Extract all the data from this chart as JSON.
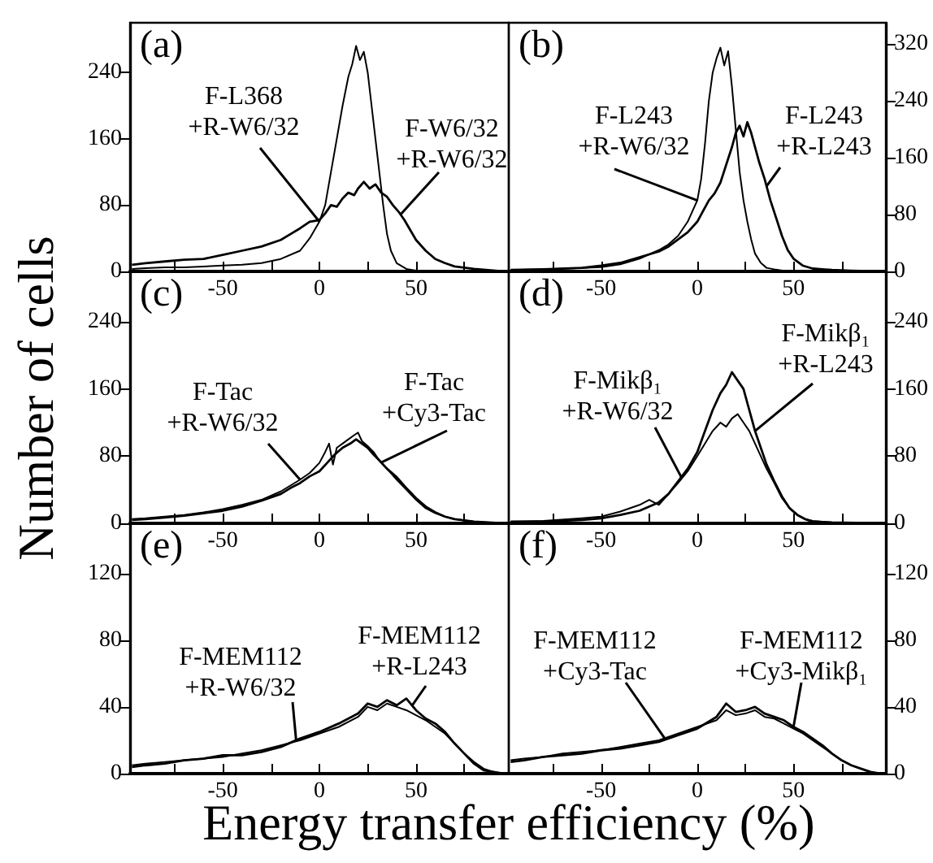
{
  "chart_data": [
    {
      "type": "line",
      "annotations": [
        "(a)"
      ],
      "ylabel": "Number of cells",
      "xlim": [
        -98,
        98
      ],
      "ylim": [
        0,
        300
      ],
      "xticks": [
        {
          "value": -75,
          "label": null
        },
        -50,
        {
          "value": -25,
          "label": null
        },
        0,
        {
          "value": 25,
          "label": null
        },
        50,
        {
          "value": 75,
          "label": null
        }
      ],
      "yticks": [
        0,
        80,
        160,
        240
      ],
      "grid": false,
      "legend": false,
      "series": [
        {
          "name": "F-L368\n+R-W6/32",
          "color": "#000000",
          "x": [
            -97,
            -90,
            -80,
            -70,
            -60,
            -50,
            -40,
            -30,
            -20,
            -10,
            -5,
            0,
            3,
            6,
            9,
            12,
            15,
            17,
            19,
            21,
            23,
            25,
            27,
            29,
            31,
            33,
            35,
            37,
            40,
            45,
            50,
            60,
            70,
            80,
            95
          ],
          "values": [
            3,
            4,
            5,
            5,
            6,
            7,
            8,
            10,
            15,
            25,
            40,
            60,
            80,
            120,
            160,
            200,
            235,
            250,
            272,
            255,
            265,
            240,
            200,
            160,
            120,
            80,
            45,
            25,
            10,
            3,
            1,
            0,
            0,
            0,
            0
          ]
        },
        {
          "name": "F-W6/32\n+R-W6/32",
          "color": "#000000",
          "x": [
            -97,
            -90,
            -80,
            -70,
            -60,
            -50,
            -40,
            -30,
            -20,
            -15,
            -10,
            -5,
            0,
            3,
            6,
            9,
            12,
            15,
            18,
            20,
            23,
            26,
            29,
            32,
            35,
            38,
            41,
            44,
            47,
            50,
            55,
            60,
            65,
            70,
            80,
            95
          ],
          "values": [
            8,
            10,
            12,
            14,
            15,
            20,
            25,
            30,
            38,
            45,
            52,
            60,
            62,
            70,
            80,
            78,
            88,
            95,
            92,
            100,
            108,
            100,
            105,
            95,
            90,
            80,
            72,
            62,
            50,
            38,
            25,
            15,
            10,
            6,
            3,
            0
          ]
        }
      ]
    },
    {
      "type": "line",
      "annotations": [
        "(b)"
      ],
      "xlim": [
        -98,
        98
      ],
      "ylim": [
        0,
        350
      ],
      "xticks": [
        {
          "value": -75,
          "label": null
        },
        -50,
        {
          "value": -25,
          "label": null
        },
        0,
        {
          "value": 25,
          "label": null
        },
        50,
        {
          "value": 75,
          "label": null
        }
      ],
      "yticks": [
        0,
        80,
        160,
        240,
        320
      ],
      "grid": false,
      "legend": false,
      "series": [
        {
          "name": "F-L243\n+R-W6/32",
          "color": "#000000",
          "x": [
            -97,
            -80,
            -60,
            -50,
            -40,
            -30,
            -20,
            -15,
            -10,
            -5,
            0,
            2,
            4,
            6,
            8,
            10,
            12,
            14,
            16,
            18,
            20,
            22,
            24,
            26,
            28,
            30,
            33,
            36,
            40,
            45,
            60,
            95
          ],
          "values": [
            2,
            3,
            5,
            6,
            10,
            18,
            30,
            38,
            50,
            70,
            100,
            130,
            180,
            240,
            280,
            300,
            315,
            290,
            310,
            260,
            200,
            140,
            100,
            70,
            45,
            25,
            12,
            5,
            3,
            1,
            0,
            0
          ]
        },
        {
          "name": "F-L243\n+R-L243",
          "color": "#000000",
          "x": [
            -97,
            -80,
            -60,
            -50,
            -40,
            -30,
            -20,
            -15,
            -10,
            -5,
            0,
            3,
            6,
            9,
            12,
            15,
            18,
            20,
            22,
            24,
            26,
            28,
            30,
            32,
            35,
            38,
            41,
            44,
            47,
            50,
            55,
            60,
            70,
            80,
            95
          ],
          "values": [
            2,
            3,
            5,
            8,
            12,
            20,
            28,
            35,
            45,
            55,
            70,
            85,
            100,
            110,
            125,
            150,
            175,
            195,
            205,
            190,
            210,
            195,
            175,
            155,
            130,
            100,
            75,
            50,
            30,
            18,
            8,
            4,
            2,
            1,
            0
          ]
        }
      ]
    },
    {
      "type": "line",
      "annotations": [
        "(c)"
      ],
      "xlim": [
        -98,
        98
      ],
      "ylim": [
        0,
        300
      ],
      "xticks": [
        {
          "value": -75,
          "label": null
        },
        -50,
        {
          "value": -25,
          "label": null
        },
        0,
        {
          "value": 25,
          "label": null
        },
        50,
        {
          "value": 75,
          "label": null
        }
      ],
      "yticks": [
        0,
        80,
        160,
        240
      ],
      "grid": false,
      "legend": false,
      "series": [
        {
          "name": "F-Tac\n+R-W6/32",
          "color": "#000000",
          "x": [
            -97,
            -90,
            -80,
            -70,
            -60,
            -50,
            -40,
            -30,
            -20,
            -15,
            -10,
            -5,
            0,
            3,
            5,
            7,
            9,
            12,
            15,
            18,
            20,
            22,
            25,
            28,
            31,
            35,
            40,
            45,
            50,
            55,
            60,
            65,
            70,
            80,
            95
          ],
          "values": [
            5,
            6,
            8,
            10,
            13,
            17,
            22,
            28,
            38,
            45,
            52,
            60,
            72,
            85,
            95,
            70,
            90,
            95,
            100,
            105,
            108,
            98,
            92,
            85,
            75,
            65,
            52,
            40,
            28,
            18,
            12,
            8,
            5,
            2,
            0
          ]
        },
        {
          "name": "F-Tac\n+Cy3-Tac",
          "color": "#000000",
          "x": [
            -97,
            -90,
            -80,
            -70,
            -60,
            -50,
            -40,
            -30,
            -20,
            -15,
            -10,
            -5,
            0,
            4,
            8,
            12,
            16,
            19,
            22,
            25,
            28,
            31,
            35,
            40,
            45,
            50,
            55,
            60,
            65,
            70,
            80,
            95
          ],
          "values": [
            4,
            5,
            7,
            9,
            12,
            15,
            20,
            27,
            35,
            42,
            48,
            56,
            62,
            72,
            82,
            90,
            95,
            100,
            95,
            90,
            82,
            75,
            65,
            55,
            42,
            30,
            20,
            13,
            8,
            5,
            2,
            0
          ]
        }
      ]
    },
    {
      "type": "line",
      "annotations": [
        "(d)"
      ],
      "xlim": [
        -98,
        98
      ],
      "ylim": [
        0,
        300
      ],
      "xticks": [
        {
          "value": -75,
          "label": null
        },
        -50,
        {
          "value": -25,
          "label": null
        },
        0,
        {
          "value": 25,
          "label": null
        },
        50,
        {
          "value": 75,
          "label": null
        }
      ],
      "yticks": [
        0,
        80,
        160,
        240
      ],
      "grid": false,
      "legend": false,
      "series": [
        {
          "name": "F-Mikβ₁\n+R-W6/32",
          "color": "#000000",
          "x": [
            -97,
            -80,
            -60,
            -50,
            -40,
            -30,
            -25,
            -20,
            -15,
            -10,
            -5,
            0,
            4,
            8,
            12,
            15,
            18,
            21,
            24,
            27,
            30,
            33,
            36,
            40,
            44,
            48,
            52,
            56,
            60,
            70,
            95
          ],
          "values": [
            2,
            3,
            6,
            8,
            14,
            22,
            28,
            22,
            35,
            48,
            62,
            80,
            95,
            110,
            120,
            115,
            125,
            130,
            120,
            110,
            95,
            80,
            65,
            48,
            30,
            18,
            10,
            5,
            3,
            1,
            0
          ]
        },
        {
          "name": "F-Mikβ₁\n+R-L243",
          "color": "#000000",
          "x": [
            -97,
            -80,
            -60,
            -50,
            -40,
            -30,
            -20,
            -15,
            -10,
            -5,
            0,
            4,
            8,
            12,
            15,
            18,
            21,
            24,
            27,
            30,
            33,
            36,
            40,
            44,
            48,
            52,
            56,
            60,
            70,
            95
          ],
          "values": [
            2,
            2,
            4,
            6,
            10,
            15,
            25,
            35,
            50,
            65,
            85,
            110,
            135,
            155,
            165,
            180,
            170,
            160,
            135,
            110,
            90,
            70,
            50,
            32,
            18,
            10,
            5,
            2,
            1,
            0
          ]
        }
      ]
    },
    {
      "type": "line",
      "annotations": [
        "(e)"
      ],
      "xlabel": "Energy transfer efficiency (%)",
      "xlim": [
        -98,
        98
      ],
      "ylim": [
        0,
        150
      ],
      "xticks": [
        {
          "value": -75,
          "label": null
        },
        -50,
        {
          "value": -25,
          "label": null
        },
        0,
        {
          "value": 25,
          "label": null
        },
        50,
        {
          "value": 75,
          "label": null
        }
      ],
      "yticks": [
        0,
        40,
        80,
        120
      ],
      "grid": false,
      "legend": false,
      "series": [
        {
          "name": "F-MEM112\n+R-W6/32",
          "color": "#000000",
          "x": [
            -97,
            -90,
            -80,
            -70,
            -60,
            -50,
            -40,
            -30,
            -20,
            -10,
            0,
            10,
            20,
            25,
            30,
            35,
            40,
            45,
            50,
            55,
            60,
            65,
            70,
            75,
            80,
            85,
            90,
            95
          ],
          "values": [
            5,
            6,
            7,
            8,
            9,
            10,
            12,
            14,
            17,
            20,
            24,
            28,
            34,
            40,
            38,
            42,
            40,
            38,
            35,
            32,
            28,
            24,
            18,
            12,
            7,
            3,
            1,
            0
          ]
        },
        {
          "name": "F-MEM112\n+R-L243",
          "color": "#000000",
          "x": [
            -97,
            -90,
            -80,
            -70,
            -60,
            -50,
            -40,
            -30,
            -20,
            -10,
            0,
            10,
            20,
            25,
            30,
            35,
            40,
            45,
            50,
            55,
            60,
            65,
            70,
            75,
            80,
            85,
            90,
            95
          ],
          "values": [
            4,
            5,
            6,
            8,
            9,
            11,
            11,
            13,
            16,
            21,
            25,
            30,
            36,
            42,
            40,
            44,
            41,
            45,
            38,
            33,
            30,
            25,
            18,
            12,
            6,
            2,
            1,
            0
          ]
        }
      ]
    },
    {
      "type": "line",
      "annotations": [
        "(f)"
      ],
      "xlim": [
        -98,
        98
      ],
      "ylim": [
        0,
        150
      ],
      "xticks": [
        {
          "value": -75,
          "label": null
        },
        -50,
        {
          "value": -25,
          "label": null
        },
        0,
        {
          "value": 25,
          "label": null
        },
        50,
        {
          "value": 75,
          "label": null
        }
      ],
      "yticks": [
        0,
        40,
        80,
        120
      ],
      "grid": false,
      "legend": false,
      "series": [
        {
          "name": "F-MEM112\n+Cy3-Tac",
          "color": "#000000",
          "x": [
            -97,
            -90,
            -80,
            -70,
            -60,
            -50,
            -40,
            -30,
            -20,
            -10,
            0,
            10,
            15,
            20,
            25,
            30,
            35,
            40,
            45,
            50,
            55,
            60,
            65,
            70,
            75,
            80,
            85,
            90,
            95
          ],
          "values": [
            8,
            9,
            10,
            12,
            13,
            14,
            16,
            18,
            20,
            24,
            28,
            32,
            38,
            35,
            36,
            38,
            34,
            33,
            30,
            27,
            24,
            20,
            16,
            12,
            8,
            5,
            3,
            1,
            0
          ]
        },
        {
          "name": "F-MEM112\n+Cy3-Mikβ₁",
          "color": "#000000",
          "x": [
            -97,
            -90,
            -80,
            -70,
            -60,
            -50,
            -40,
            -30,
            -20,
            -10,
            0,
            10,
            15,
            20,
            25,
            30,
            35,
            40,
            45,
            50,
            55,
            60,
            65,
            70,
            75,
            80,
            85,
            90,
            95
          ],
          "values": [
            7,
            8,
            10,
            11,
            12,
            14,
            15,
            17,
            19,
            23,
            27,
            34,
            42,
            37,
            38,
            40,
            36,
            34,
            32,
            28,
            25,
            21,
            17,
            12,
            8,
            5,
            3,
            1,
            0
          ]
        }
      ]
    }
  ]
}
